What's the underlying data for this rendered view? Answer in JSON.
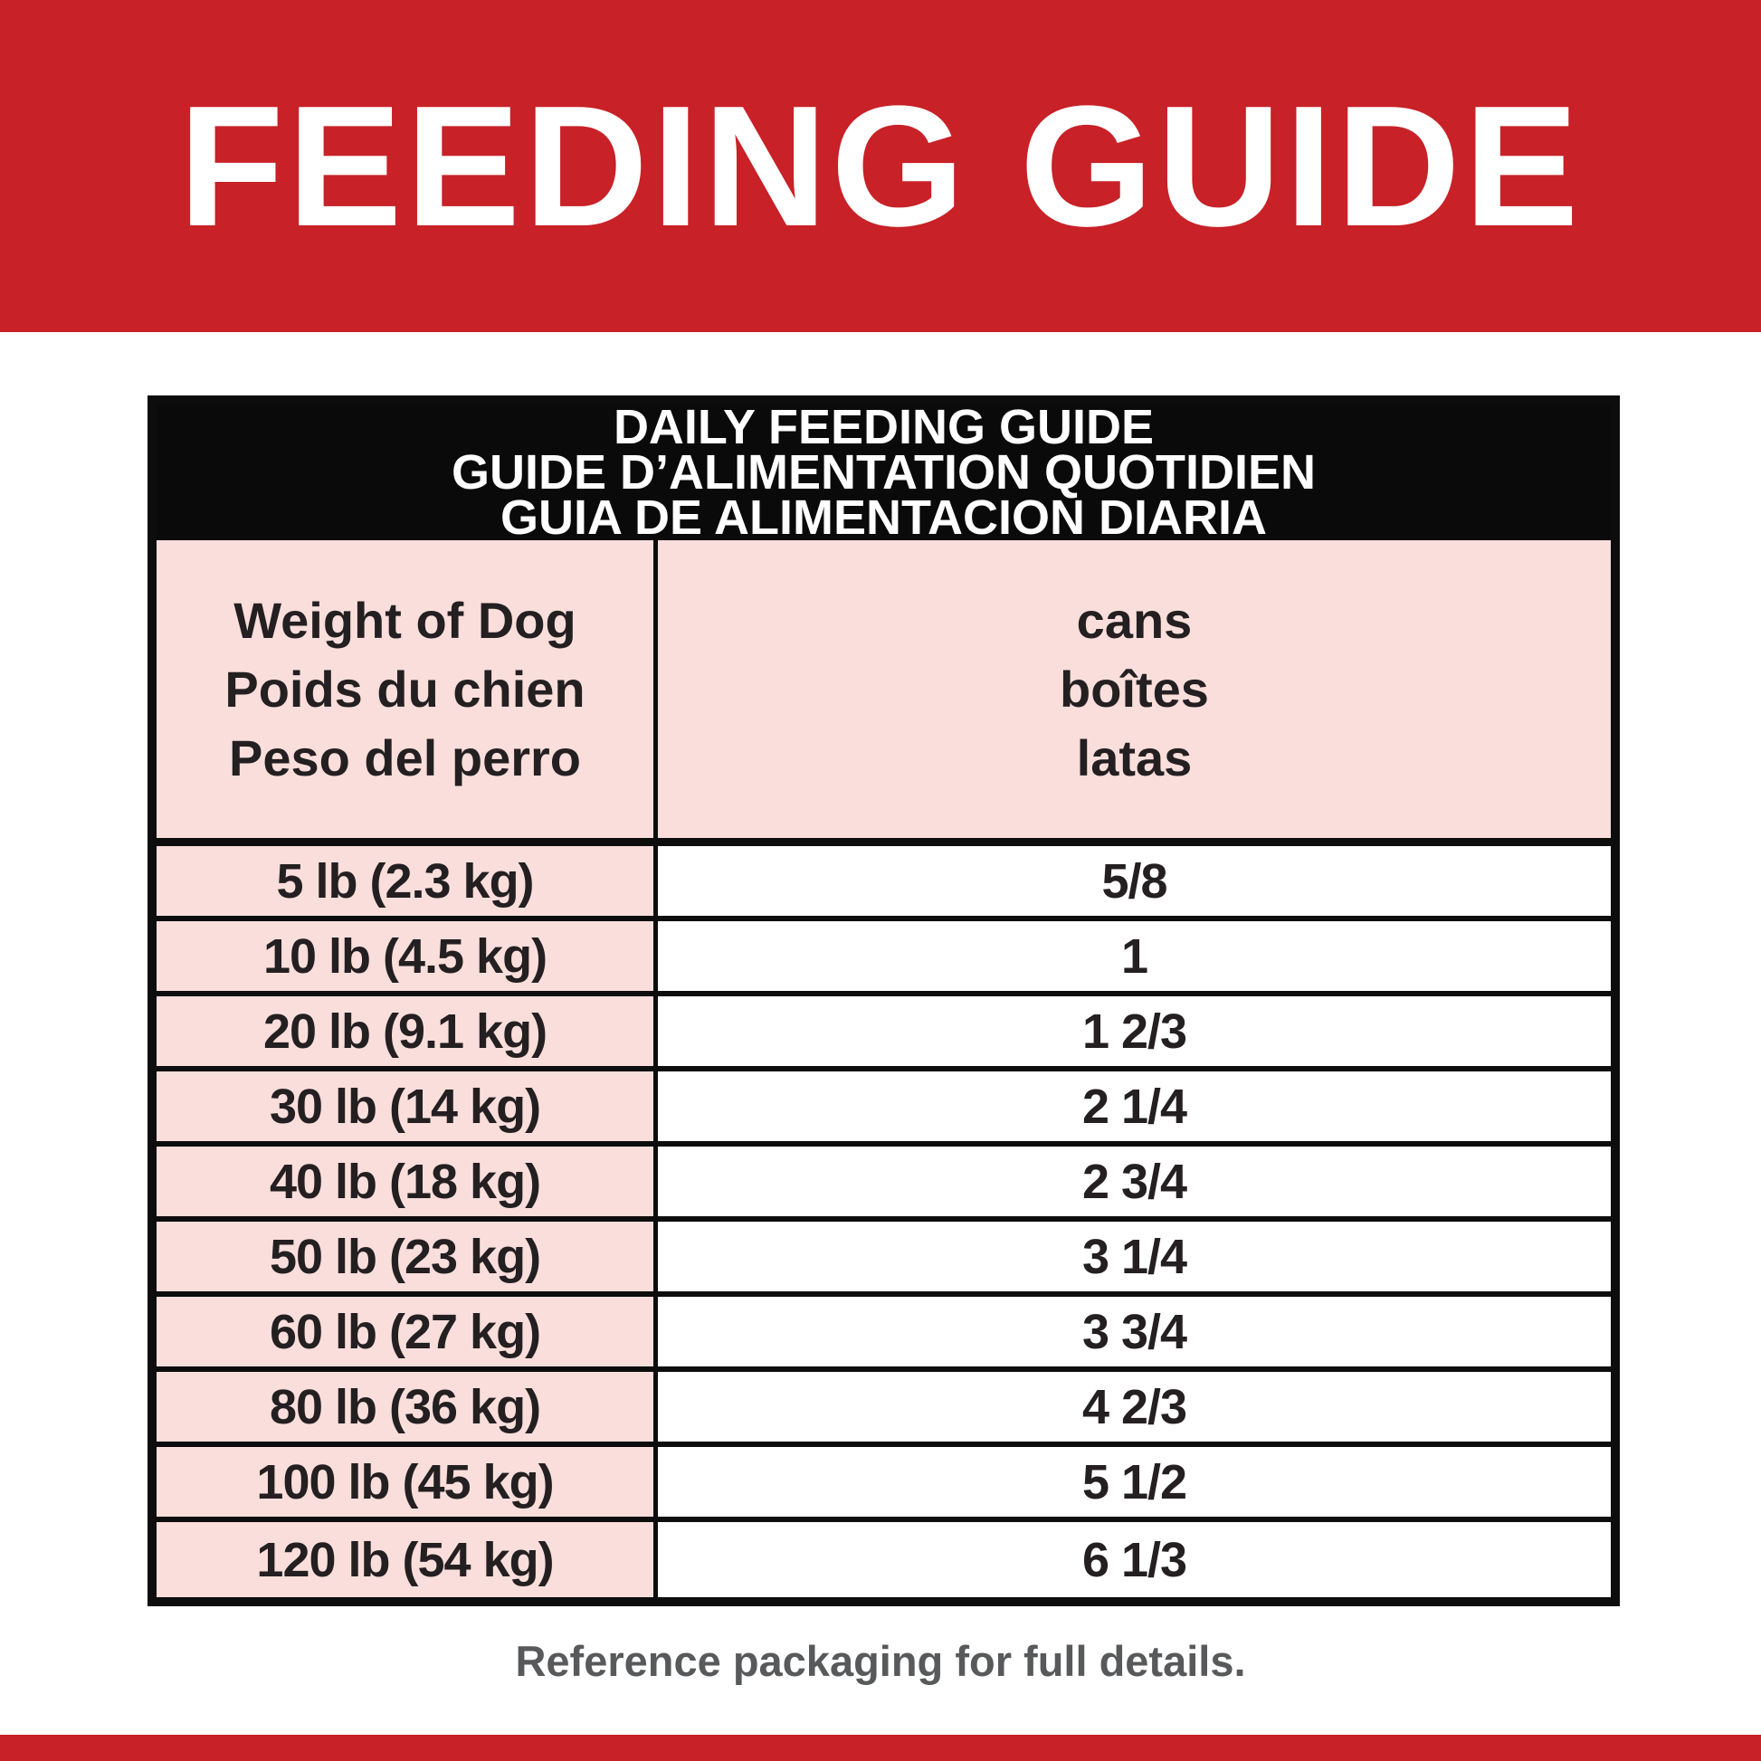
{
  "banner": {
    "title": "FEEDING GUIDE"
  },
  "daily_table": {
    "title_lines": [
      "DAILY FEEDING GUIDE",
      "GUIDE D’ALIMENTATION QUOTIDIEN",
      "GUIA DE ALIMENTACION DIARIA"
    ],
    "weight_header_lines": [
      "Weight of Dog",
      "Poids du chien",
      "Peso del perro"
    ],
    "cans_header_lines": [
      "cans",
      "boîtes",
      "latas"
    ],
    "rows": [
      {
        "weight": "5 lb (2.3 kg)",
        "cans": "5/8"
      },
      {
        "weight": "10 lb (4.5 kg)",
        "cans": "1"
      },
      {
        "weight": "20 lb (9.1 kg)",
        "cans": "1 2/3"
      },
      {
        "weight": "30 lb (14 kg)",
        "cans": "2 1/4"
      },
      {
        "weight": "40 lb (18 kg)",
        "cans": "2 3/4"
      },
      {
        "weight": "50 lb (23 kg)",
        "cans": "3 1/4"
      },
      {
        "weight": "60 lb (27 kg)",
        "cans": "3 3/4"
      },
      {
        "weight": "80 lb (36 kg)",
        "cans": "4 2/3"
      },
      {
        "weight": "100 lb (45 kg)",
        "cans": "5 1/2"
      },
      {
        "weight": "120 lb (54 kg)",
        "cans": "6 1/3"
      }
    ]
  },
  "footer": {
    "note": "Reference packaging for full details."
  },
  "colors": {
    "banner_red": "#c82127",
    "pink": "#f9dedb",
    "table_black": "#0a0a0a",
    "text_dark": "#241f21",
    "footer_gray": "#58595b",
    "white": "#ffffff"
  }
}
